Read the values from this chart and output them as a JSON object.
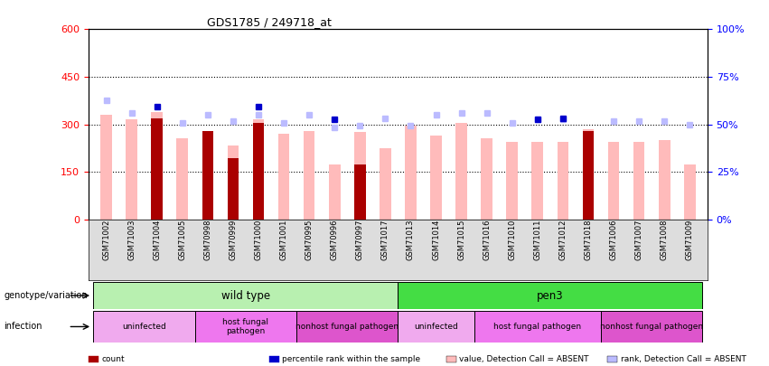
{
  "title": "GDS1785 / 249718_at",
  "samples": [
    "GSM71002",
    "GSM71003",
    "GSM71004",
    "GSM71005",
    "GSM70998",
    "GSM70999",
    "GSM71000",
    "GSM71001",
    "GSM70995",
    "GSM70996",
    "GSM70997",
    "GSM71017",
    "GSM71013",
    "GSM71014",
    "GSM71015",
    "GSM71016",
    "GSM71010",
    "GSM71011",
    "GSM71012",
    "GSM71018",
    "GSM71006",
    "GSM71007",
    "GSM71008",
    "GSM71009"
  ],
  "count_values": [
    0,
    0,
    320,
    0,
    280,
    195,
    305,
    0,
    0,
    0,
    175,
    0,
    0,
    0,
    0,
    0,
    0,
    0,
    0,
    280,
    0,
    0,
    0,
    0
  ],
  "value_absent": [
    330,
    315,
    340,
    255,
    265,
    235,
    315,
    270,
    280,
    175,
    275,
    225,
    295,
    265,
    305,
    255,
    245,
    245,
    245,
    285,
    245,
    245,
    250,
    175
  ],
  "rank_absent": [
    375,
    335,
    0,
    305,
    330,
    310,
    330,
    305,
    330,
    290,
    295,
    320,
    295,
    330,
    335,
    335,
    305,
    315,
    315,
    0,
    310,
    310,
    310,
    300
  ],
  "percentile_present": [
    0,
    0,
    355,
    0,
    0,
    0,
    355,
    0,
    0,
    315,
    0,
    0,
    0,
    0,
    0,
    0,
    0,
    315,
    320,
    0,
    0,
    0,
    0,
    0
  ],
  "ylim_left": [
    0,
    600
  ],
  "ylim_right": [
    0,
    100
  ],
  "yticks_left": [
    0,
    150,
    300,
    450,
    600
  ],
  "yticks_right": [
    0,
    25,
    50,
    75,
    100
  ],
  "genotype_groups": [
    {
      "label": "wild type",
      "start": 0,
      "end": 11,
      "color": "#b8f0b0"
    },
    {
      "label": "pen3",
      "start": 12,
      "end": 23,
      "color": "#44dd44"
    }
  ],
  "infection_groups": [
    {
      "label": "uninfected",
      "start": 0,
      "end": 3,
      "color": "#f0aaee"
    },
    {
      "label": "host fungal\npathogen",
      "start": 4,
      "end": 7,
      "color": "#ee77ee"
    },
    {
      "label": "nonhost fungal pathogen",
      "start": 8,
      "end": 11,
      "color": "#dd55cc"
    },
    {
      "label": "uninfected",
      "start": 12,
      "end": 14,
      "color": "#f0aaee"
    },
    {
      "label": "host fungal pathogen",
      "start": 15,
      "end": 19,
      "color": "#ee77ee"
    },
    {
      "label": "nonhost fungal pathogen",
      "start": 20,
      "end": 23,
      "color": "#dd55cc"
    }
  ],
  "color_count": "#aa0000",
  "color_percentile": "#0000cc",
  "color_value_absent": "#ffbbbb",
  "color_rank_absent": "#bbbbff",
  "bar_width": 0.45,
  "gridline_color": "black",
  "left_label": "genotype/variation",
  "infection_label": "infection"
}
